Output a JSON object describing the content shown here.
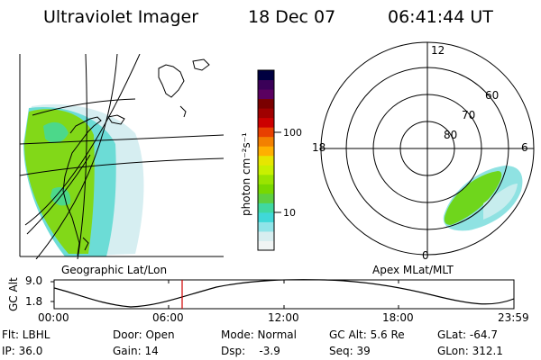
{
  "header": {
    "instrument": "Ultraviolet Imager",
    "date": "18 Dec 07",
    "time": "06:41:44 UT"
  },
  "geo_panel": {
    "caption": "Geographic Lat/Lon"
  },
  "polar_panel": {
    "caption": "Apex MLat/MLT",
    "mlt_labels": {
      "top": "12",
      "left": "18",
      "right": "6",
      "bottom": "0"
    },
    "mlat_labels": [
      "60",
      "70",
      "80"
    ]
  },
  "colorbar": {
    "unit_label": "photon cm⁻²s⁻¹",
    "tick_100": "100",
    "tick_10": "10",
    "colors": [
      "#000040",
      "#3a0058",
      "#5a0060",
      "#7a0000",
      "#a00000",
      "#cc0000",
      "#e84000",
      "#f38000",
      "#ffb000",
      "#e6e600",
      "#c8f000",
      "#9ae400",
      "#78d800",
      "#5ed040",
      "#40d8a0",
      "#40d8d8",
      "#90e4e8",
      "#d8eef0",
      "#f0f4f4"
    ]
  },
  "timeline": {
    "y_axis_label": "GC Alt",
    "y_max": "9.0",
    "y_min": "1.8",
    "x_ticks": [
      "00:00",
      "06:00",
      "12:00",
      "18:00",
      "23:59"
    ],
    "current_marker_color": "#d00000"
  },
  "status": {
    "flt": "Flt: LBHL",
    "ip": "IP: 36.0",
    "door": "Door: Open",
    "gain": "Gain: 14",
    "mode": "Mode: Normal",
    "dsp": "Dsp:    -3.9",
    "gc_alt": "GC Alt: 5.6 Re",
    "seq": "Seq: 39",
    "glat": "GLat: -64.7",
    "glon": "GLon: 312.1"
  }
}
